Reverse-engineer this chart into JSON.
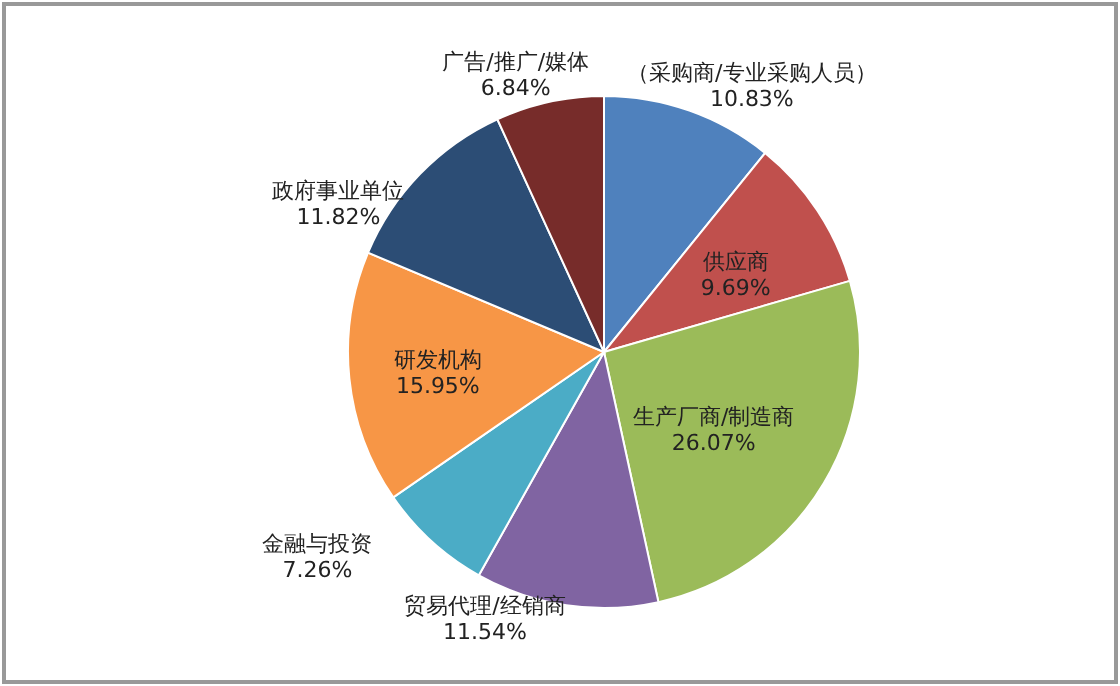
{
  "chart_data": {
    "type": "pie",
    "categories": [
      "（采购商/专业采购人员）",
      "供应商",
      "生产厂商/制造商",
      "贸易代理/经销商",
      "金融与投资",
      "研发机构",
      "政府事业单位",
      "广告/推广/媒体"
    ],
    "values": [
      10.83,
      9.69,
      26.07,
      11.54,
      7.26,
      15.95,
      11.82,
      6.84
    ],
    "value_labels": [
      "10.83%",
      "9.69%",
      "26.07%",
      "11.54%",
      "7.26%",
      "15.95%",
      "11.82%",
      "6.84%"
    ],
    "colors": [
      "#4f81bd",
      "#c0504d",
      "#9bbb59",
      "#8064a2",
      "#4bacc6",
      "#f79646",
      "#2c4d75",
      "#772c2a"
    ]
  }
}
